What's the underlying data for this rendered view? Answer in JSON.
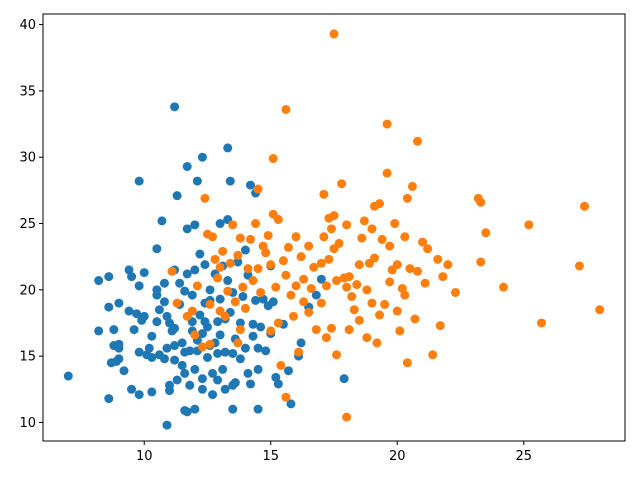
{
  "chart_data": {
    "type": "scatter",
    "title": "",
    "xlabel": "",
    "ylabel": "",
    "xlim": [
      6.0,
      29.0
    ],
    "ylim": [
      8.6,
      40.8
    ],
    "xticks": [
      10,
      15,
      20,
      25
    ],
    "yticks": [
      10,
      15,
      20,
      25,
      30,
      35,
      40
    ],
    "grid": false,
    "colors": {
      "series_1": "#1f77b4",
      "series_2": "#ff7f0e"
    },
    "series": [
      {
        "color": "#1f77b4",
        "points": [
          [
            7.0,
            13.5
          ],
          [
            8.2,
            16.9
          ],
          [
            8.2,
            20.7
          ],
          [
            8.6,
            21.0
          ],
          [
            8.6,
            18.7
          ],
          [
            8.6,
            11.8
          ],
          [
            8.7,
            14.5
          ],
          [
            8.8,
            15.8
          ],
          [
            8.8,
            17.0
          ],
          [
            8.9,
            14.6
          ],
          [
            9.0,
            14.8
          ],
          [
            9.0,
            15.6
          ],
          [
            9.0,
            19.0
          ],
          [
            9.0,
            15.9
          ],
          [
            9.2,
            13.9
          ],
          [
            9.4,
            18.4
          ],
          [
            9.4,
            21.5
          ],
          [
            9.5,
            12.5
          ],
          [
            9.5,
            21.0
          ],
          [
            9.6,
            17.0
          ],
          [
            9.7,
            18.2
          ],
          [
            9.8,
            15.3
          ],
          [
            9.8,
            20.3
          ],
          [
            9.8,
            12.1
          ],
          [
            9.8,
            28.2
          ],
          [
            9.9,
            17.7
          ],
          [
            10.0,
            18.0
          ],
          [
            10.0,
            21.3
          ],
          [
            10.1,
            15.1
          ],
          [
            10.2,
            15.6
          ],
          [
            10.3,
            12.3
          ],
          [
            10.3,
            16.5
          ],
          [
            10.3,
            14.9
          ],
          [
            10.5,
            23.1
          ],
          [
            10.5,
            17.6
          ],
          [
            10.5,
            19.6
          ],
          [
            10.5,
            20.0
          ],
          [
            10.6,
            18.5
          ],
          [
            10.6,
            15.1
          ],
          [
            10.7,
            25.2
          ],
          [
            10.8,
            20.5
          ],
          [
            10.8,
            19.1
          ],
          [
            10.8,
            14.8
          ],
          [
            10.9,
            18.0
          ],
          [
            10.9,
            15.6
          ],
          [
            10.9,
            9.8
          ],
          [
            11.0,
            12.8
          ],
          [
            11.0,
            12.4
          ],
          [
            11.0,
            17.5
          ],
          [
            11.1,
            16.9
          ],
          [
            11.2,
            21.5
          ],
          [
            11.2,
            14.7
          ],
          [
            11.2,
            15.8
          ],
          [
            11.2,
            17.1
          ],
          [
            11.2,
            33.8
          ],
          [
            11.3,
            13.2
          ],
          [
            11.3,
            27.1
          ],
          [
            11.4,
            18.9
          ],
          [
            11.4,
            20.5
          ],
          [
            11.5,
            14.3
          ],
          [
            11.5,
            16.0
          ],
          [
            11.6,
            10.9
          ],
          [
            11.6,
            13.7
          ],
          [
            11.6,
            15.3
          ],
          [
            11.6,
            19.9
          ],
          [
            11.7,
            21.2
          ],
          [
            11.7,
            24.6
          ],
          [
            11.7,
            10.8
          ],
          [
            11.7,
            29.3
          ],
          [
            11.8,
            12.8
          ],
          [
            11.8,
            15.4
          ],
          [
            11.9,
            16.9
          ],
          [
            11.9,
            17.6
          ],
          [
            11.9,
            19.6
          ],
          [
            12.0,
            14.0
          ],
          [
            12.0,
            21.5
          ],
          [
            12.0,
            11.0
          ],
          [
            12.0,
            24.9
          ],
          [
            12.1,
            28.2
          ],
          [
            12.1,
            15.4
          ],
          [
            12.1,
            16.2
          ],
          [
            12.2,
            18.1
          ],
          [
            12.2,
            22.7
          ],
          [
            12.3,
            13.3
          ],
          [
            12.3,
            16.7
          ],
          [
            12.3,
            12.5
          ],
          [
            12.3,
            30.0
          ],
          [
            12.4,
            19.0
          ],
          [
            12.4,
            17.6
          ],
          [
            12.4,
            21.9
          ],
          [
            12.5,
            14.9
          ],
          [
            12.5,
            17.2
          ],
          [
            12.6,
            15.8
          ],
          [
            12.6,
            20.0
          ],
          [
            12.6,
            19.2
          ],
          [
            12.7,
            12.1
          ],
          [
            12.7,
            13.7
          ],
          [
            12.8,
            21.2
          ],
          [
            12.8,
            16.0
          ],
          [
            12.9,
            17.6
          ],
          [
            12.9,
            13.2
          ],
          [
            12.9,
            15.2
          ],
          [
            13.0,
            16.6
          ],
          [
            13.0,
            19.3
          ],
          [
            13.0,
            25.0
          ],
          [
            13.1,
            14.0
          ],
          [
            13.1,
            21.8
          ],
          [
            13.2,
            17.8
          ],
          [
            13.2,
            12.5
          ],
          [
            13.2,
            15.3
          ],
          [
            13.3,
            30.7
          ],
          [
            13.3,
            25.3
          ],
          [
            13.3,
            20.7
          ],
          [
            13.4,
            18.3
          ],
          [
            13.4,
            28.2
          ],
          [
            13.5,
            12.8
          ],
          [
            13.5,
            19.8
          ],
          [
            13.5,
            11.0
          ],
          [
            13.5,
            15.2
          ],
          [
            13.6,
            13.0
          ],
          [
            13.6,
            16.3
          ],
          [
            13.7,
            22.1
          ],
          [
            13.8,
            14.8
          ],
          [
            13.8,
            17.5
          ],
          [
            13.9,
            19.5
          ],
          [
            14.0,
            15.6
          ],
          [
            14.0,
            23.0
          ],
          [
            14.1,
            13.7
          ],
          [
            14.1,
            21.1
          ],
          [
            14.2,
            27.9
          ],
          [
            14.2,
            12.9
          ],
          [
            14.3,
            17.4
          ],
          [
            14.3,
            16.5
          ],
          [
            14.4,
            19.2
          ],
          [
            14.4,
            27.3
          ],
          [
            14.5,
            14.0
          ],
          [
            14.5,
            15.6
          ],
          [
            14.5,
            11.0
          ],
          [
            14.6,
            17.2
          ],
          [
            14.7,
            19.3
          ],
          [
            14.8,
            15.4
          ],
          [
            14.9,
            18.8
          ],
          [
            15.0,
            16.7
          ],
          [
            15.0,
            21.8
          ],
          [
            15.1,
            19.1
          ],
          [
            15.2,
            13.4
          ],
          [
            15.3,
            12.9
          ],
          [
            15.5,
            17.4
          ],
          [
            15.7,
            13.9
          ],
          [
            15.8,
            11.4
          ],
          [
            16.1,
            15.0
          ],
          [
            16.2,
            16.0
          ],
          [
            16.5,
            18.7
          ],
          [
            16.8,
            19.6
          ],
          [
            17.0,
            20.8
          ],
          [
            17.9,
            13.3
          ]
        ]
      },
      {
        "color": "#ff7f0e",
        "points": [
          [
            11.1,
            21.4
          ],
          [
            11.3,
            19.0
          ],
          [
            11.7,
            18.0
          ],
          [
            11.9,
            18.4
          ],
          [
            12.0,
            16.6
          ],
          [
            12.1,
            20.3
          ],
          [
            12.3,
            15.7
          ],
          [
            12.4,
            26.9
          ],
          [
            12.5,
            24.2
          ],
          [
            12.6,
            18.9
          ],
          [
            12.6,
            15.9
          ],
          [
            12.7,
            24.0
          ],
          [
            12.8,
            22.3
          ],
          [
            12.9,
            20.9
          ],
          [
            13.0,
            21.7
          ],
          [
            13.0,
            18.4
          ],
          [
            13.1,
            22.9
          ],
          [
            13.2,
            18.0
          ],
          [
            13.3,
            19.9
          ],
          [
            13.4,
            22.0
          ],
          [
            13.5,
            24.9
          ],
          [
            13.6,
            19.1
          ],
          [
            13.7,
            22.6
          ],
          [
            13.7,
            16.0
          ],
          [
            13.8,
            17.0
          ],
          [
            13.8,
            23.9
          ],
          [
            13.9,
            20.2
          ],
          [
            14.0,
            18.6
          ],
          [
            14.1,
            21.6
          ],
          [
            14.2,
            23.8
          ],
          [
            14.3,
            20.7
          ],
          [
            14.4,
            25.0
          ],
          [
            14.5,
            21.6
          ],
          [
            14.5,
            27.6
          ],
          [
            14.6,
            19.8
          ],
          [
            14.7,
            23.3
          ],
          [
            14.8,
            22.8
          ],
          [
            14.9,
            24.1
          ],
          [
            15.0,
            21.9
          ],
          [
            15.0,
            16.9
          ],
          [
            15.1,
            25.7
          ],
          [
            15.1,
            29.9
          ],
          [
            15.2,
            20.2
          ],
          [
            15.3,
            17.5
          ],
          [
            15.3,
            25.3
          ],
          [
            15.4,
            14.3
          ],
          [
            15.5,
            22.2
          ],
          [
            15.6,
            21.1
          ],
          [
            15.6,
            33.6
          ],
          [
            15.6,
            11.9
          ],
          [
            15.7,
            23.2
          ],
          [
            15.8,
            19.6
          ],
          [
            15.9,
            18.0
          ],
          [
            16.0,
            20.3
          ],
          [
            16.0,
            24.0
          ],
          [
            16.1,
            15.3
          ],
          [
            16.2,
            22.5
          ],
          [
            16.3,
            19.1
          ],
          [
            16.3,
            20.8
          ],
          [
            16.5,
            18.3
          ],
          [
            16.5,
            23.3
          ],
          [
            16.6,
            20.1
          ],
          [
            16.7,
            21.7
          ],
          [
            16.8,
            17.0
          ],
          [
            17.0,
            19.0
          ],
          [
            17.0,
            22.0
          ],
          [
            17.1,
            24.0
          ],
          [
            17.1,
            27.2
          ],
          [
            17.2,
            20.3
          ],
          [
            17.2,
            16.4
          ],
          [
            17.3,
            22.3
          ],
          [
            17.3,
            25.4
          ],
          [
            17.4,
            24.6
          ],
          [
            17.4,
            17.1
          ],
          [
            17.5,
            23.1
          ],
          [
            17.5,
            39.3
          ],
          [
            17.5,
            25.6
          ],
          [
            17.6,
            20.7
          ],
          [
            17.6,
            15.1
          ],
          [
            17.7,
            23.5
          ],
          [
            17.8,
            28.0
          ],
          [
            17.9,
            20.9
          ],
          [
            18.0,
            24.9
          ],
          [
            18.0,
            10.4
          ],
          [
            18.0,
            20.2
          ],
          [
            18.1,
            17.0
          ],
          [
            18.1,
            21.0
          ],
          [
            18.2,
            19.5
          ],
          [
            18.3,
            18.5
          ],
          [
            18.4,
            20.4
          ],
          [
            18.5,
            17.7
          ],
          [
            18.5,
            21.9
          ],
          [
            18.6,
            23.9
          ],
          [
            18.7,
            25.2
          ],
          [
            18.8,
            20.0
          ],
          [
            18.8,
            16.4
          ],
          [
            18.9,
            22.0
          ],
          [
            19.0,
            19.0
          ],
          [
            19.0,
            24.6
          ],
          [
            19.1,
            26.3
          ],
          [
            19.1,
            22.4
          ],
          [
            19.2,
            16.0
          ],
          [
            19.3,
            18.1
          ],
          [
            19.3,
            26.5
          ],
          [
            19.4,
            23.8
          ],
          [
            19.5,
            18.9
          ],
          [
            19.6,
            32.5
          ],
          [
            19.6,
            28.8
          ],
          [
            19.7,
            23.3
          ],
          [
            19.7,
            20.6
          ],
          [
            19.8,
            21.5
          ],
          [
            19.9,
            25.0
          ],
          [
            20.0,
            18.4
          ],
          [
            20.0,
            21.9
          ],
          [
            20.1,
            16.9
          ],
          [
            20.2,
            20.1
          ],
          [
            20.3,
            24.0
          ],
          [
            20.3,
            19.6
          ],
          [
            20.4,
            26.9
          ],
          [
            20.4,
            14.5
          ],
          [
            20.5,
            21.6
          ],
          [
            20.6,
            27.8
          ],
          [
            20.7,
            17.8
          ],
          [
            20.8,
            31.2
          ],
          [
            20.8,
            21.4
          ],
          [
            21.0,
            23.6
          ],
          [
            21.1,
            20.5
          ],
          [
            21.2,
            23.1
          ],
          [
            21.4,
            15.1
          ],
          [
            21.6,
            22.3
          ],
          [
            21.7,
            17.3
          ],
          [
            21.8,
            21.0
          ],
          [
            22.0,
            21.9
          ],
          [
            22.3,
            19.8
          ],
          [
            23.2,
            26.9
          ],
          [
            23.3,
            26.6
          ],
          [
            23.3,
            22.1
          ],
          [
            23.5,
            24.3
          ],
          [
            24.2,
            20.2
          ],
          [
            25.2,
            24.9
          ],
          [
            25.7,
            17.5
          ],
          [
            27.2,
            21.8
          ],
          [
            27.4,
            26.3
          ],
          [
            28.0,
            18.5
          ]
        ]
      }
    ]
  }
}
